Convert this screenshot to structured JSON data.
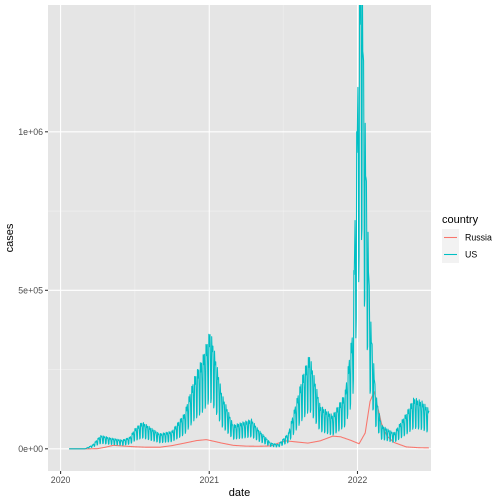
{
  "chart_data": {
    "type": "line",
    "xlabel": "date",
    "ylabel": "cases",
    "xlim": [
      "2019-12-01",
      "2022-07-01"
    ],
    "ylim": [
      -70000,
      1400000
    ],
    "x_ticks": [
      {
        "date": "2020-01-01",
        "label": "2020"
      },
      {
        "date": "2021-01-01",
        "label": "2021"
      },
      {
        "date": "2022-01-01",
        "label": "2022"
      }
    ],
    "y_ticks": [
      {
        "value": 0,
        "label": "0e+00"
      },
      {
        "value": 500000,
        "label": "5e+05"
      },
      {
        "value": 1000000,
        "label": "1e+06"
      }
    ],
    "grid": true,
    "panel_background": "#e5e5e5",
    "legend": {
      "title": "country",
      "position": "right",
      "entries": [
        {
          "name": "Russia",
          "color": "#F8766D"
        },
        {
          "name": "US",
          "color": "#00BFC4"
        }
      ]
    },
    "series": [
      {
        "name": "Russia",
        "color": "#F8766D",
        "points": [
          [
            "2020-01-22",
            0
          ],
          [
            "2020-03-15",
            100
          ],
          [
            "2020-04-01",
            500
          ],
          [
            "2020-04-20",
            5000
          ],
          [
            "2020-05-10",
            11000
          ],
          [
            "2020-06-01",
            9000
          ],
          [
            "2020-07-01",
            6500
          ],
          [
            "2020-08-01",
            5000
          ],
          [
            "2020-09-01",
            5000
          ],
          [
            "2020-10-01",
            10000
          ],
          [
            "2020-11-01",
            18000
          ],
          [
            "2020-12-01",
            26000
          ],
          [
            "2020-12-25",
            29000
          ],
          [
            "2021-01-15",
            23000
          ],
          [
            "2021-02-01",
            18000
          ],
          [
            "2021-03-01",
            11000
          ],
          [
            "2021-04-01",
            8500
          ],
          [
            "2021-05-01",
            8000
          ],
          [
            "2021-06-01",
            9000
          ],
          [
            "2021-06-20",
            18000
          ],
          [
            "2021-07-10",
            25000
          ],
          [
            "2021-08-01",
            22000
          ],
          [
            "2021-09-01",
            18000
          ],
          [
            "2021-10-01",
            25000
          ],
          [
            "2021-11-01",
            40000
          ],
          [
            "2021-11-20",
            38000
          ],
          [
            "2021-12-15",
            27000
          ],
          [
            "2022-01-05",
            16000
          ],
          [
            "2022-01-20",
            50000
          ],
          [
            "2022-02-01",
            150000
          ],
          [
            "2022-02-11",
            180000
          ],
          [
            "2022-02-20",
            130000
          ],
          [
            "2022-03-01",
            80000
          ],
          [
            "2022-03-15",
            40000
          ],
          [
            "2022-04-01",
            20000
          ],
          [
            "2022-05-01",
            6000
          ],
          [
            "2022-06-01",
            3500
          ],
          [
            "2022-06-26",
            3000
          ]
        ]
      },
      {
        "name": "US",
        "color": "#00BFC4",
        "points": [
          [
            "2020-01-22",
            0
          ],
          [
            "2020-03-01",
            0
          ],
          [
            "2020-03-20",
            10000
          ],
          [
            "2020-04-05",
            30000
          ],
          [
            "2020-04-10",
            34000
          ],
          [
            "2020-05-01",
            28000
          ],
          [
            "2020-06-01",
            22000
          ],
          [
            "2020-06-20",
            30000
          ],
          [
            "2020-07-01",
            50000
          ],
          [
            "2020-07-20",
            68000
          ],
          [
            "2020-08-01",
            60000
          ],
          [
            "2020-09-01",
            38000
          ],
          [
            "2020-10-01",
            45000
          ],
          [
            "2020-11-01",
            90000
          ],
          [
            "2020-11-25",
            180000
          ],
          [
            "2020-12-15",
            230000
          ],
          [
            "2021-01-03",
            300000
          ],
          [
            "2021-01-10",
            270000
          ],
          [
            "2021-02-01",
            140000
          ],
          [
            "2021-03-01",
            60000
          ],
          [
            "2021-04-01",
            70000
          ],
          [
            "2021-04-15",
            75000
          ],
          [
            "2021-05-01",
            50000
          ],
          [
            "2021-06-01",
            15000
          ],
          [
            "2021-06-20",
            11000
          ],
          [
            "2021-07-15",
            40000
          ],
          [
            "2021-08-01",
            110000
          ],
          [
            "2021-08-20",
            190000
          ],
          [
            "2021-09-05",
            240000
          ],
          [
            "2021-10-01",
            110000
          ],
          [
            "2021-11-01",
            85000
          ],
          [
            "2021-12-01",
            140000
          ],
          [
            "2021-12-20",
            300000
          ],
          [
            "2022-01-03",
            1000000
          ],
          [
            "2022-01-10",
            1380000
          ],
          [
            "2022-01-18",
            900000
          ],
          [
            "2022-02-01",
            350000
          ],
          [
            "2022-02-15",
            140000
          ],
          [
            "2022-03-01",
            60000
          ],
          [
            "2022-04-01",
            40000
          ],
          [
            "2022-05-01",
            90000
          ],
          [
            "2022-05-20",
            130000
          ],
          [
            "2022-06-10",
            120000
          ],
          [
            "2022-06-26",
            100000
          ]
        ]
      }
    ]
  }
}
